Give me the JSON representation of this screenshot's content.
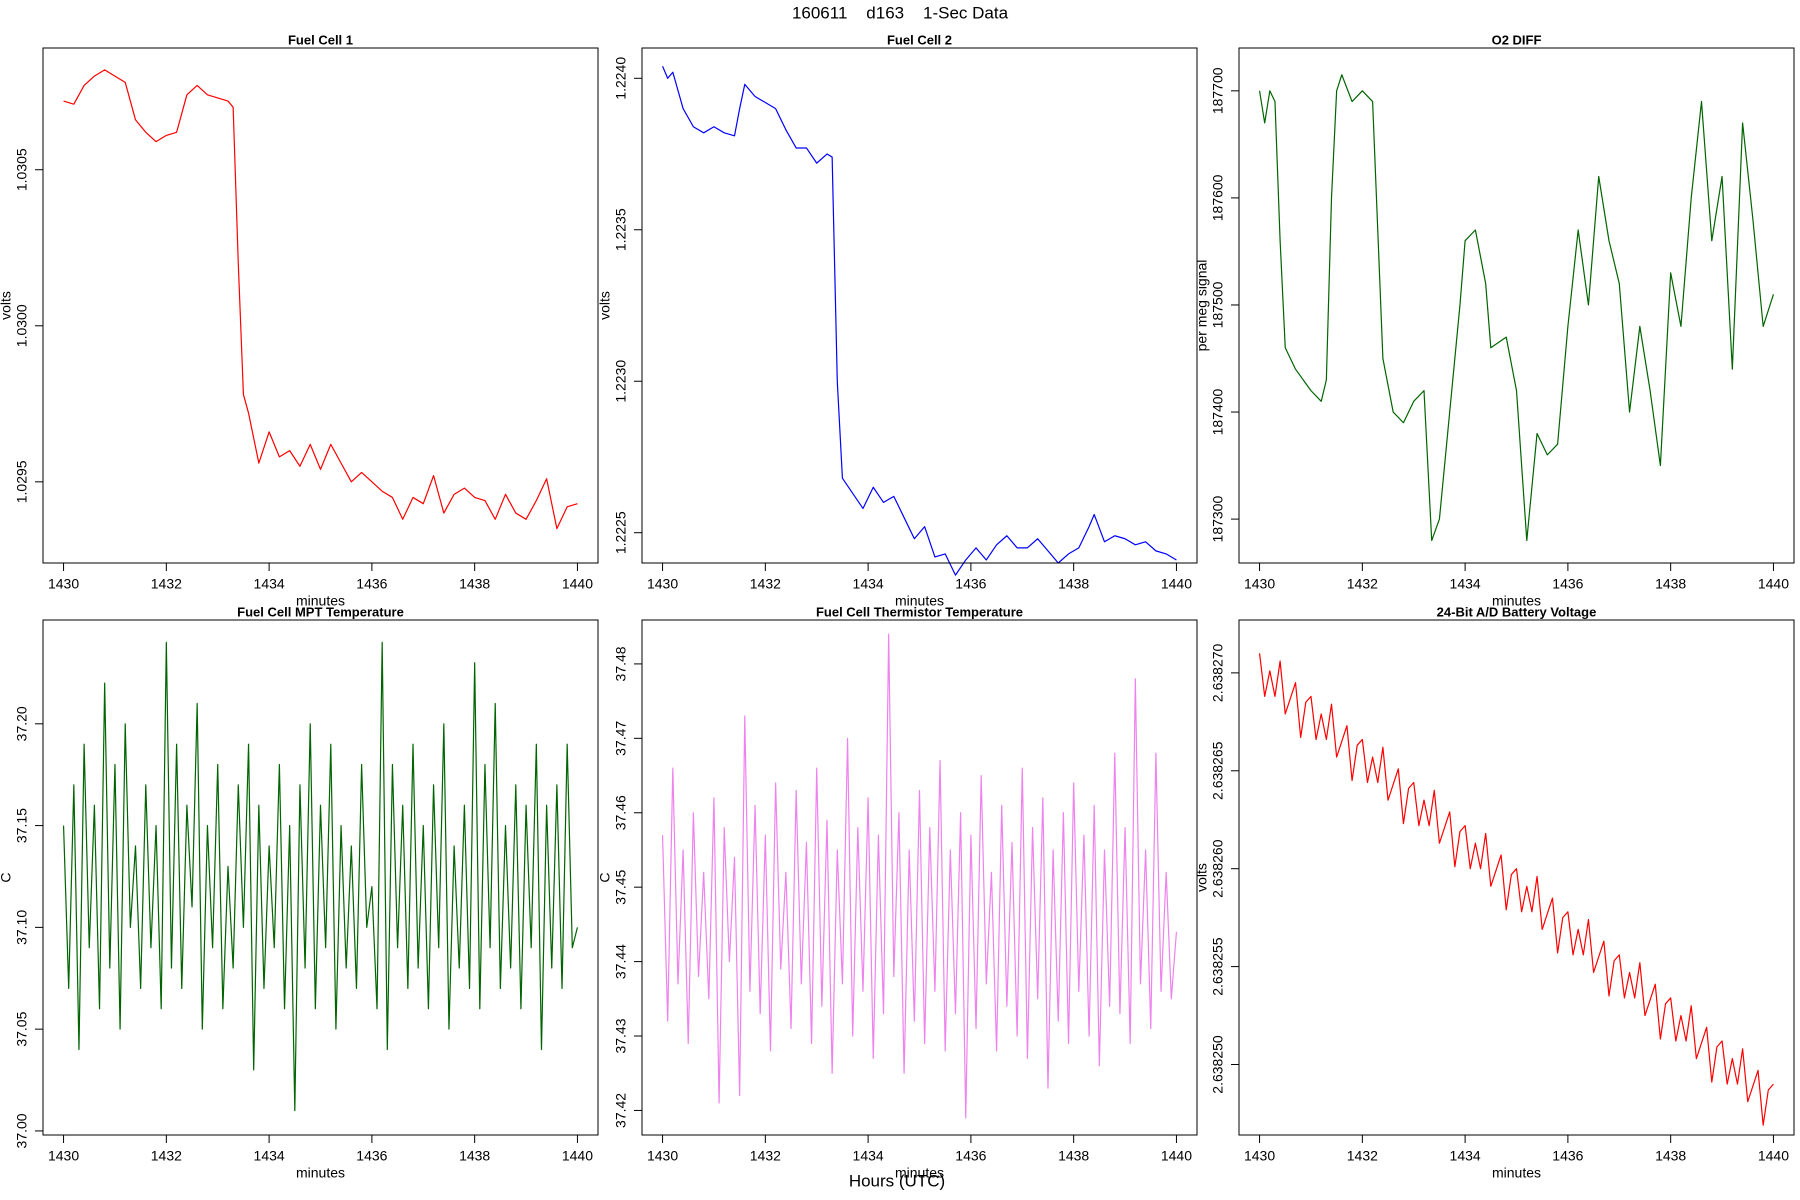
{
  "page": {
    "title": "160611    d163    1-Sec Data",
    "xlabel": "Hours (UTC)"
  },
  "chart_data": [
    {
      "type": "line",
      "title": "Fuel Cell 1",
      "xlabel": "minutes",
      "ylabel": "volts",
      "color": "#ff0000",
      "xlim": [
        1429.6,
        1440.4
      ],
      "xticks": [
        1430,
        1432,
        1434,
        1436,
        1438,
        1440
      ],
      "ylim": [
        1.02924,
        1.03089
      ],
      "yticks": [
        1.0295,
        {
          "value": 1.03,
          "label": "1.0300"
        },
        1.0305
      ],
      "x": [
        1430.0,
        1430.2,
        1430.4,
        1430.6,
        1430.8,
        1431.0,
        1431.2,
        1431.4,
        1431.6,
        1431.8,
        1432.0,
        1432.2,
        1432.4,
        1432.6,
        1432.8,
        1433.0,
        1433.2,
        1433.3,
        1433.4,
        1433.5,
        1433.6,
        1433.8,
        1434.0,
        1434.2,
        1434.4,
        1434.6,
        1434.8,
        1435.0,
        1435.2,
        1435.4,
        1435.6,
        1435.8,
        1436.0,
        1436.2,
        1436.4,
        1436.6,
        1436.8,
        1437.0,
        1437.2,
        1437.4,
        1437.6,
        1437.8,
        1438.0,
        1438.2,
        1438.4,
        1438.6,
        1438.8,
        1439.0,
        1439.2,
        1439.4,
        1439.6,
        1439.8,
        1440.0
      ],
      "values": [
        1.03072,
        1.03071,
        1.03077,
        1.0308,
        1.03082,
        1.0308,
        1.03078,
        1.03066,
        1.03062,
        1.03059,
        1.03061,
        1.03062,
        1.03074,
        1.03077,
        1.03074,
        1.03073,
        1.03072,
        1.0307,
        1.0302,
        1.02978,
        1.02972,
        1.02956,
        1.02966,
        1.02958,
        1.0296,
        1.02955,
        1.02962,
        1.02954,
        1.02962,
        1.02956,
        1.0295,
        1.02953,
        1.0295,
        1.02947,
        1.02945,
        1.02938,
        1.02945,
        1.02943,
        1.02952,
        1.0294,
        1.02946,
        1.02948,
        1.02945,
        1.02944,
        1.02938,
        1.02946,
        1.0294,
        1.02938,
        1.02944,
        1.02951,
        1.02935,
        1.02942,
        1.02943
      ]
    },
    {
      "type": "line",
      "title": "Fuel Cell 2",
      "xlabel": "minutes",
      "ylabel": "volts",
      "color": "#0000ff",
      "xlim": [
        1429.6,
        1440.4
      ],
      "xticks": [
        1430,
        1432,
        1434,
        1436,
        1438,
        1440
      ],
      "ylim": [
        1.2224,
        1.2241
      ],
      "yticks": [
        1.2225,
        {
          "value": 1.223,
          "label": "1.2230"
        },
        1.2235,
        {
          "value": 1.224,
          "label": "1.2240"
        }
      ],
      "x": [
        1430.0,
        1430.1,
        1430.2,
        1430.4,
        1430.6,
        1430.8,
        1431.0,
        1431.2,
        1431.4,
        1431.5,
        1431.6,
        1431.8,
        1432.0,
        1432.2,
        1432.4,
        1432.6,
        1432.8,
        1433.0,
        1433.2,
        1433.3,
        1433.4,
        1433.5,
        1433.7,
        1433.9,
        1434.1,
        1434.3,
        1434.5,
        1434.7,
        1434.9,
        1435.1,
        1435.3,
        1435.5,
        1435.7,
        1435.9,
        1436.1,
        1436.3,
        1436.5,
        1436.7,
        1436.9,
        1437.1,
        1437.3,
        1437.5,
        1437.7,
        1437.9,
        1438.1,
        1438.3,
        1438.4,
        1438.6,
        1438.8,
        1439.0,
        1439.2,
        1439.4,
        1439.6,
        1439.8,
        1440.0
      ],
      "values": [
        1.22404,
        1.224,
        1.22402,
        1.2239,
        1.22384,
        1.22382,
        1.22384,
        1.22382,
        1.22381,
        1.2239,
        1.22398,
        1.22394,
        1.22392,
        1.2239,
        1.22383,
        1.22377,
        1.22377,
        1.22372,
        1.22375,
        1.22374,
        1.223,
        1.22268,
        1.22263,
        1.22258,
        1.22265,
        1.2226,
        1.22262,
        1.22255,
        1.22248,
        1.22252,
        1.22242,
        1.22243,
        1.22236,
        1.22241,
        1.22245,
        1.22241,
        1.22246,
        1.22249,
        1.22245,
        1.22245,
        1.22248,
        1.22244,
        1.2224,
        1.22243,
        1.22245,
        1.22252,
        1.22256,
        1.22247,
        1.22249,
        1.22248,
        1.22246,
        1.22247,
        1.22244,
        1.22243,
        1.22241
      ]
    },
    {
      "type": "line",
      "title": "O2 DIFF",
      "xlabel": "minutes",
      "ylabel": "per meg signal",
      "color": "#006400",
      "xlim": [
        1429.6,
        1440.4
      ],
      "xticks": [
        1430,
        1432,
        1434,
        1436,
        1438,
        1440
      ],
      "ylim": [
        187259,
        187740
      ],
      "yticks": [
        187300,
        187400,
        187500,
        187600,
        187700
      ],
      "x": [
        1430.0,
        1430.1,
        1430.2,
        1430.3,
        1430.4,
        1430.5,
        1430.7,
        1431.0,
        1431.2,
        1431.3,
        1431.4,
        1431.5,
        1431.6,
        1431.8,
        1432.0,
        1432.2,
        1432.4,
        1432.6,
        1432.8,
        1433.0,
        1433.2,
        1433.35,
        1433.5,
        1433.7,
        1433.9,
        1434.0,
        1434.2,
        1434.4,
        1434.5,
        1434.8,
        1435.0,
        1435.2,
        1435.4,
        1435.6,
        1435.8,
        1436.0,
        1436.2,
        1436.4,
        1436.6,
        1436.8,
        1437.0,
        1437.2,
        1437.4,
        1437.6,
        1437.8,
        1438.0,
        1438.2,
        1438.4,
        1438.6,
        1438.8,
        1439.0,
        1439.2,
        1439.4,
        1439.6,
        1439.8,
        1440.0
      ],
      "values": [
        187700,
        187670,
        187700,
        187690,
        187560,
        187460,
        187440,
        187420,
        187410,
        187430,
        187600,
        187700,
        187715,
        187690,
        187700,
        187690,
        187450,
        187400,
        187390,
        187410,
        187420,
        187280,
        187300,
        187400,
        187500,
        187560,
        187570,
        187520,
        187460,
        187470,
        187420,
        187280,
        187380,
        187360,
        187370,
        187480,
        187570,
        187500,
        187620,
        187560,
        187520,
        187400,
        187480,
        187420,
        187350,
        187530,
        187480,
        187600,
        187690,
        187560,
        187620,
        187440,
        187670,
        187580,
        187480,
        187510
      ]
    },
    {
      "type": "line",
      "title": "Fuel Cell MPT Temperature",
      "xlabel": "minutes",
      "ylabel": "C",
      "color": "#006400",
      "xlim": [
        1429.6,
        1440.4
      ],
      "xticks": [
        1430,
        1432,
        1434,
        1436,
        1438,
        1440
      ],
      "ylim": [
        36.998,
        37.251
      ],
      "yticks": [
        {
          "value": 37,
          "label": "37.00"
        },
        37.05,
        {
          "value": 37.1,
          "label": "37.10"
        },
        37.15,
        {
          "value": 37.2,
          "label": "37.20"
        }
      ],
      "x": [
        1430,
        1430.1,
        1430.2,
        1430.3,
        1430.4,
        1430.5,
        1430.6,
        1430.7,
        1430.8,
        1430.9,
        1431,
        1431.1,
        1431.2,
        1431.3,
        1431.4,
        1431.5,
        1431.6,
        1431.7,
        1431.8,
        1431.9,
        1432,
        1432.1,
        1432.2,
        1432.3,
        1432.4,
        1432.5,
        1432.6,
        1432.7,
        1432.8,
        1432.9,
        1433,
        1433.1,
        1433.2,
        1433.3,
        1433.4,
        1433.5,
        1433.6,
        1433.7,
        1433.8,
        1433.9,
        1434,
        1434.1,
        1434.2,
        1434.3,
        1434.4,
        1434.5,
        1434.6,
        1434.7,
        1434.8,
        1434.9,
        1435,
        1435.1,
        1435.2,
        1435.3,
        1435.4,
        1435.5,
        1435.6,
        1435.7,
        1435.8,
        1435.9,
        1436,
        1436.1,
        1436.2,
        1436.3,
        1436.4,
        1436.5,
        1436.6,
        1436.7,
        1436.8,
        1436.9,
        1437,
        1437.1,
        1437.2,
        1437.3,
        1437.4,
        1437.5,
        1437.6,
        1437.7,
        1437.8,
        1437.9,
        1438,
        1438.1,
        1438.2,
        1438.3,
        1438.4,
        1438.5,
        1438.6,
        1438.7,
        1438.8,
        1438.9,
        1439,
        1439.1,
        1439.2,
        1439.3,
        1439.4,
        1439.5,
        1439.6,
        1439.7,
        1439.8,
        1439.9,
        1440
      ],
      "values": [
        37.15,
        37.07,
        37.17,
        37.04,
        37.19,
        37.09,
        37.16,
        37.06,
        37.22,
        37.08,
        37.18,
        37.05,
        37.2,
        37.1,
        37.14,
        37.07,
        37.17,
        37.09,
        37.15,
        37.06,
        37.24,
        37.08,
        37.19,
        37.07,
        37.16,
        37.11,
        37.21,
        37.05,
        37.15,
        37.09,
        37.18,
        37.06,
        37.13,
        37.08,
        37.17,
        37.1,
        37.19,
        37.03,
        37.16,
        37.07,
        37.14,
        37.09,
        37.18,
        37.06,
        37.15,
        37.01,
        37.17,
        37.08,
        37.2,
        37.06,
        37.16,
        37.09,
        37.19,
        37.05,
        37.15,
        37.08,
        37.14,
        37.07,
        37.18,
        37.1,
        37.12,
        37.06,
        37.24,
        37.04,
        37.18,
        37.09,
        37.16,
        37.07,
        37.19,
        37.08,
        37.15,
        37.06,
        37.17,
        37.09,
        37.2,
        37.05,
        37.14,
        37.08,
        37.16,
        37.07,
        37.23,
        37.06,
        37.18,
        37.09,
        37.21,
        37.07,
        37.15,
        37.08,
        37.17,
        37.06,
        37.16,
        37.09,
        37.19,
        37.04,
        37.16,
        37.08,
        37.17,
        37.07,
        37.19,
        37.09,
        37.1
      ]
    },
    {
      "type": "line",
      "title": "Fuel Cell Thermistor Temperature",
      "xlabel": "minutes",
      "ylabel": "C",
      "color": "#ee82ee",
      "xlim": [
        1429.6,
        1440.4
      ],
      "xticks": [
        1430,
        1432,
        1434,
        1436,
        1438,
        1440
      ],
      "ylim": [
        37.4167,
        37.4859
      ],
      "yticks": [
        37.42,
        37.43,
        37.44,
        37.45,
        37.46,
        37.47,
        37.48
      ],
      "x": [
        1430,
        1430.1,
        1430.2,
        1430.3,
        1430.4,
        1430.5,
        1430.6,
        1430.7,
        1430.8,
        1430.9,
        1431,
        1431.1,
        1431.2,
        1431.3,
        1431.4,
        1431.5,
        1431.6,
        1431.7,
        1431.8,
        1431.9,
        1432,
        1432.1,
        1432.2,
        1432.3,
        1432.4,
        1432.5,
        1432.6,
        1432.7,
        1432.8,
        1432.9,
        1433,
        1433.1,
        1433.2,
        1433.3,
        1433.4,
        1433.5,
        1433.6,
        1433.7,
        1433.8,
        1433.9,
        1434,
        1434.1,
        1434.2,
        1434.3,
        1434.4,
        1434.5,
        1434.6,
        1434.7,
        1434.8,
        1434.9,
        1435,
        1435.1,
        1435.2,
        1435.3,
        1435.4,
        1435.5,
        1435.6,
        1435.7,
        1435.8,
        1435.9,
        1436,
        1436.1,
        1436.2,
        1436.3,
        1436.4,
        1436.5,
        1436.6,
        1436.7,
        1436.8,
        1436.9,
        1437,
        1437.1,
        1437.2,
        1437.3,
        1437.4,
        1437.5,
        1437.6,
        1437.7,
        1437.8,
        1437.9,
        1438,
        1438.1,
        1438.2,
        1438.3,
        1438.4,
        1438.5,
        1438.6,
        1438.7,
        1438.8,
        1438.9,
        1439,
        1439.1,
        1439.2,
        1439.3,
        1439.4,
        1439.5,
        1439.6,
        1439.7,
        1439.8,
        1439.9,
        1440
      ],
      "values": [
        37.457,
        37.432,
        37.466,
        37.437,
        37.455,
        37.429,
        37.46,
        37.438,
        37.452,
        37.435,
        37.462,
        37.421,
        37.458,
        37.44,
        37.454,
        37.422,
        37.473,
        37.436,
        37.461,
        37.433,
        37.457,
        37.428,
        37.464,
        37.439,
        37.452,
        37.431,
        37.463,
        37.437,
        37.456,
        37.429,
        37.466,
        37.434,
        37.459,
        37.425,
        37.455,
        37.437,
        37.47,
        37.43,
        37.458,
        37.436,
        37.462,
        37.427,
        37.457,
        37.433,
        37.484,
        37.438,
        37.46,
        37.425,
        37.455,
        37.432,
        37.463,
        37.429,
        37.458,
        37.436,
        37.467,
        37.428,
        37.455,
        37.433,
        37.46,
        37.419,
        37.457,
        37.431,
        37.465,
        37.437,
        37.452,
        37.428,
        37.461,
        37.434,
        37.456,
        37.43,
        37.466,
        37.427,
        37.458,
        37.435,
        37.462,
        37.423,
        37.455,
        37.432,
        37.46,
        37.429,
        37.464,
        37.436,
        37.457,
        37.43,
        37.461,
        37.426,
        37.455,
        37.434,
        37.468,
        37.433,
        37.458,
        37.429,
        37.478,
        37.437,
        37.455,
        37.431,
        37.468,
        37.436,
        37.452,
        37.435,
        37.444
      ]
    },
    {
      "type": "line",
      "title": "24-Bit A/D Battery Voltage",
      "xlabel": "minutes",
      "ylabel": "volts",
      "color": "#ff0000",
      "xlim": [
        1429.6,
        1440.4
      ],
      "xticks": [
        1430,
        1432,
        1434,
        1436,
        1438,
        1440
      ],
      "ylim": [
        2.6382464,
        2.6382727
      ],
      "yticks": [
        {
          "value": 2.63825,
          "label": "2.638250"
        },
        2.638255,
        {
          "value": 2.63826,
          "label": "2.638260"
        },
        2.638265,
        {
          "value": 2.63827,
          "label": "2.638270"
        }
      ],
      "x": [
        1430,
        1430.1,
        1430.2,
        1430.3,
        1430.4,
        1430.5,
        1430.6,
        1430.7,
        1430.8,
        1430.9,
        1431,
        1431.1,
        1431.2,
        1431.3,
        1431.4,
        1431.5,
        1431.6,
        1431.7,
        1431.8,
        1431.9,
        1432,
        1432.1,
        1432.2,
        1432.3,
        1432.4,
        1432.5,
        1432.6,
        1432.7,
        1432.8,
        1432.9,
        1433,
        1433.1,
        1433.2,
        1433.3,
        1433.4,
        1433.5,
        1433.6,
        1433.7,
        1433.8,
        1433.9,
        1434,
        1434.1,
        1434.2,
        1434.3,
        1434.4,
        1434.5,
        1434.6,
        1434.7,
        1434.8,
        1434.9,
        1435,
        1435.1,
        1435.2,
        1435.3,
        1435.4,
        1435.5,
        1435.6,
        1435.7,
        1435.8,
        1435.9,
        1436,
        1436.1,
        1436.2,
        1436.3,
        1436.4,
        1436.5,
        1436.6,
        1436.7,
        1436.8,
        1436.9,
        1437,
        1437.1,
        1437.2,
        1437.3,
        1437.4,
        1437.5,
        1437.6,
        1437.7,
        1437.8,
        1437.9,
        1438,
        1438.1,
        1438.2,
        1438.3,
        1438.4,
        1438.5,
        1438.6,
        1438.7,
        1438.8,
        1438.9,
        1439,
        1439.1,
        1439.2,
        1439.3,
        1439.4,
        1439.5,
        1439.6,
        1439.7,
        1439.8,
        1439.9,
        1440
      ],
      "values": [
        2.638271,
        2.6382688,
        2.6382701,
        2.6382688,
        2.6382706,
        2.6382679,
        2.6382687,
        2.6382695,
        2.6382667,
        2.6382685,
        2.6382688,
        2.6382666,
        2.6382679,
        2.6382666,
        2.6382684,
        2.6382657,
        2.6382665,
        2.6382673,
        2.6382645,
        2.6382663,
        2.6382666,
        2.6382644,
        2.6382657,
        2.6382644,
        2.6382662,
        2.6382635,
        2.6382643,
        2.6382651,
        2.6382623,
        2.6382641,
        2.6382644,
        2.6382622,
        2.6382635,
        2.6382622,
        2.638264,
        2.6382613,
        2.6382621,
        2.6382629,
        2.6382601,
        2.6382619,
        2.6382622,
        2.63826,
        2.6382613,
        2.63826,
        2.6382618,
        2.6382591,
        2.6382599,
        2.6382607,
        2.6382579,
        2.6382597,
        2.63826,
        2.6382578,
        2.6382591,
        2.6382578,
        2.6382596,
        2.6382569,
        2.6382577,
        2.6382585,
        2.6382557,
        2.6382575,
        2.6382578,
        2.6382556,
        2.6382569,
        2.6382556,
        2.6382574,
        2.6382547,
        2.6382555,
        2.6382563,
        2.6382535,
        2.6382553,
        2.6382556,
        2.6382534,
        2.6382547,
        2.6382534,
        2.6382552,
        2.6382525,
        2.6382533,
        2.6382541,
        2.6382513,
        2.6382531,
        2.6382534,
        2.6382512,
        2.6382525,
        2.6382512,
        2.638253,
        2.6382503,
        2.6382511,
        2.6382519,
        2.6382491,
        2.6382509,
        2.6382512,
        2.638249,
        2.6382503,
        2.638249,
        2.6382508,
        2.6382481,
        2.6382489,
        2.6382497,
        2.6382469,
        2.6382487,
        2.638249
      ]
    }
  ]
}
